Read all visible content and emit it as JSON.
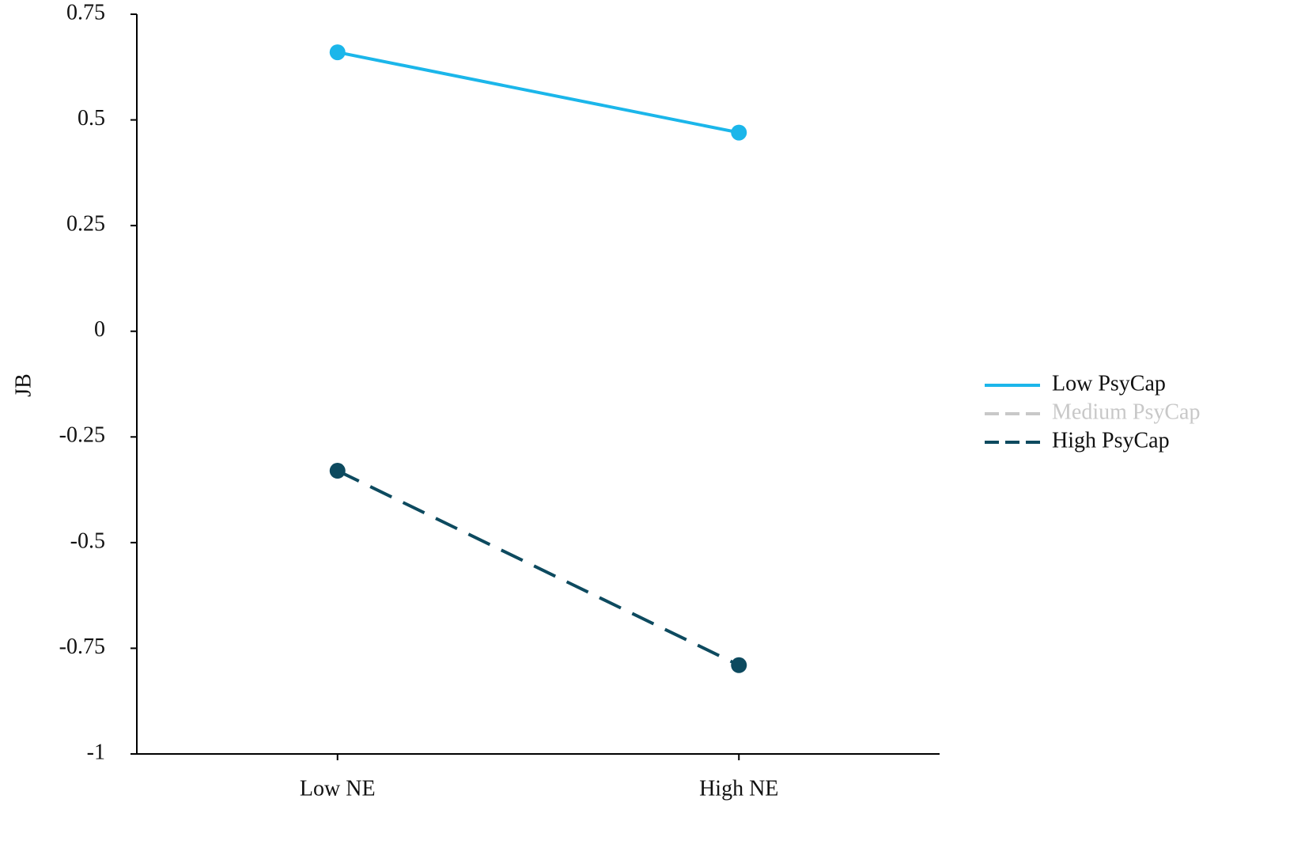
{
  "chart_data": {
    "type": "line",
    "y_label": "JB",
    "categories": [
      "Low NE",
      "High NE"
    ],
    "series": [
      {
        "name": "Low PsyCap",
        "color": "#1bb6ea",
        "linestyle": "solid",
        "values": [
          0.66,
          0.47
        ]
      },
      {
        "name": "Medium PsyCap",
        "color": "#c8c8c8",
        "linestyle": "dashed",
        "values": [
          null,
          null
        ]
      },
      {
        "name": "High PsyCap",
        "color": "#0d4a5f",
        "linestyle": "dashed",
        "values": [
          -0.33,
          -0.79
        ]
      }
    ],
    "ylim": [
      -1,
      0.75
    ],
    "yticks": [
      -1,
      -0.75,
      -0.5,
      -0.25,
      0,
      0.25,
      0.5,
      0.75
    ],
    "grid": false,
    "legend": "right"
  }
}
